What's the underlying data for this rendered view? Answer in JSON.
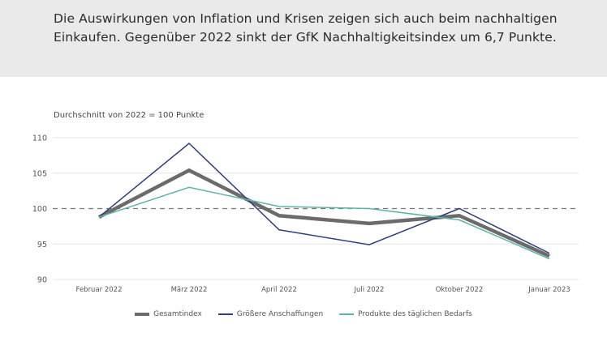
{
  "headline": "Die Auswirkungen von Inflation und Krisen zeigen sich auch beim nachhaltigen Einkaufen. Gegenüber 2022 sinkt der GfK Nachhaltigkeitsindex um 6,7 Punkte.",
  "chart_data": {
    "type": "line",
    "subtitle": "Durchschnitt von 2022 = 100 Punkte",
    "categories": [
      "Februar 2022",
      "März 2022",
      "April 2022",
      "Juli 2022",
      "Oktober 2022",
      "Januar 2023"
    ],
    "ylim": [
      90,
      110
    ],
    "yticks": [
      90,
      95,
      100,
      105,
      110
    ],
    "reference_line": 100,
    "grid": true,
    "legend_position": "bottom",
    "series": [
      {
        "name": "Gesamtindex",
        "color": "#6b6b6b",
        "values": [
          98.8,
          105.4,
          99.0,
          97.9,
          99.0,
          93.3
        ]
      },
      {
        "name": "Größere Anschaffungen",
        "color": "#2f3f7d",
        "values": [
          98.8,
          109.2,
          97.0,
          94.9,
          100.0,
          93.7
        ]
      },
      {
        "name": "Produkte des täglichen Bedarfs",
        "color": "#5db5a8",
        "values": [
          98.8,
          103.0,
          100.3,
          100.0,
          98.4,
          92.9
        ]
      }
    ]
  }
}
